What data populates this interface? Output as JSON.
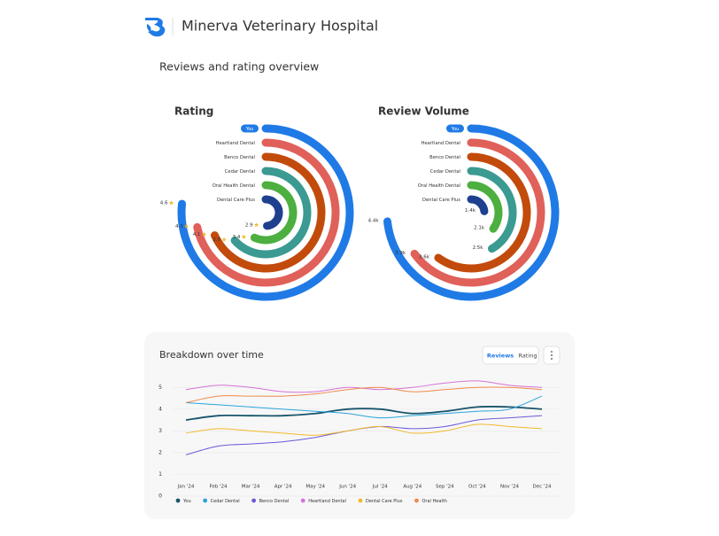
{
  "header": {
    "brand": "Minerva Veterinary Hospital",
    "section": "Reviews and rating overview"
  },
  "chart_data": [
    {
      "type": "radial-bar",
      "title": "Rating",
      "categories": [
        "You",
        "Heartland Dental",
        "Benco Dental",
        "Cedar Dental",
        "Oral Health Dental",
        "Dental Care Plus"
      ],
      "values": [
        4.6,
        4.3,
        4.1,
        3.8,
        3.4,
        2.9
      ],
      "colors": [
        "#1f7ae6",
        "#e0605a",
        "#c24b0c",
        "#3b9a91",
        "#4caf3f",
        "#1f3f8f"
      ],
      "rlim": [
        0,
        6
      ]
    },
    {
      "type": "radial-bar",
      "title": "Review Volume",
      "categories": [
        "You",
        "Heartland Dental",
        "Benco Dental",
        "Cedar Dental",
        "Oral Health Dental",
        "Dental Care Plus"
      ],
      "values": [
        4400,
        3900,
        3600,
        2500,
        2100,
        1400
      ],
      "value_labels": [
        "4.4k",
        "3.9k",
        "3.6k",
        "2.5k",
        "2.1k",
        "1.4k"
      ],
      "colors": [
        "#1f7ae6",
        "#e0605a",
        "#c24b0c",
        "#3b9a91",
        "#4caf3f",
        "#1f3f8f"
      ],
      "rlim": [
        0,
        6000
      ]
    },
    {
      "type": "line",
      "title": "Breakdown over time",
      "tabs": [
        "Reviews",
        "Rating"
      ],
      "active_tab": "Reviews",
      "categories": [
        "Jan '24",
        "Feb '24",
        "Mar '24",
        "Apr '24",
        "May '24",
        "Jun '24",
        "Jul '24",
        "Aug '24",
        "Sep '24",
        "Oct '24",
        "Nov '24",
        "Dec '24"
      ],
      "series": [
        {
          "name": "You",
          "color": "#17556a",
          "values": [
            3.5,
            3.7,
            3.7,
            3.7,
            3.8,
            4.0,
            4.0,
            3.8,
            3.9,
            4.1,
            4.1,
            4.0
          ]
        },
        {
          "name": "Cedar Dental",
          "color": "#2ba3dc",
          "values": [
            4.3,
            4.2,
            4.1,
            4.0,
            3.9,
            3.8,
            3.6,
            3.7,
            3.8,
            3.9,
            4.0,
            4.6
          ]
        },
        {
          "name": "Benco Dental",
          "color": "#6a5ad8",
          "values": [
            1.9,
            2.3,
            2.4,
            2.5,
            2.7,
            3.0,
            3.2,
            3.1,
            3.2,
            3.5,
            3.6,
            3.7
          ]
        },
        {
          "name": "Heartland Dental",
          "color": "#d672d8",
          "values": [
            4.9,
            5.1,
            5.0,
            4.8,
            4.8,
            5.0,
            4.9,
            5.0,
            5.2,
            5.3,
            5.1,
            5.0
          ]
        },
        {
          "name": "Dental Care Plus",
          "color": "#f2b92c",
          "values": [
            2.9,
            3.1,
            3.0,
            2.9,
            2.8,
            3.0,
            3.2,
            2.9,
            3.0,
            3.3,
            3.2,
            3.1
          ]
        },
        {
          "name": "Oral Health",
          "color": "#f08a4b",
          "values": [
            4.3,
            4.6,
            4.6,
            4.6,
            4.7,
            4.9,
            5.0,
            4.8,
            4.9,
            5.0,
            5.0,
            4.9
          ]
        }
      ],
      "ylim": [
        0,
        5.5
      ],
      "yticks": [
        0,
        1,
        2,
        3,
        4,
        5
      ],
      "grid": true
    }
  ]
}
